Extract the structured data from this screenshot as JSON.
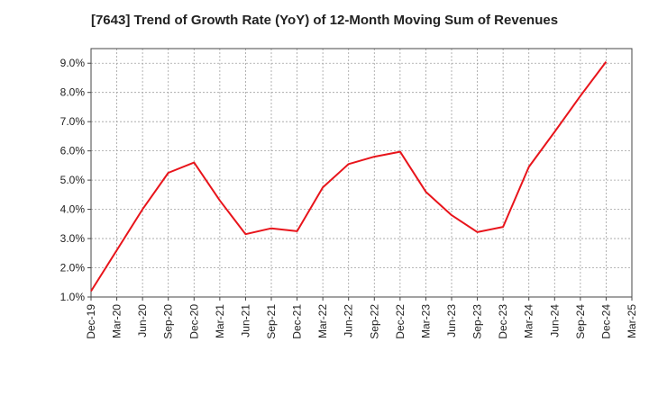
{
  "chart_data": {
    "type": "line",
    "title": "[7643]  Trend of Growth Rate (YoY) of 12-Month Moving Sum of Revenues",
    "xlabel": "",
    "ylabel": "",
    "categories": [
      "Dec-19",
      "Mar-20",
      "Jun-20",
      "Sep-20",
      "Dec-20",
      "Mar-21",
      "Jun-21",
      "Sep-21",
      "Dec-21",
      "Mar-22",
      "Jun-22",
      "Sep-22",
      "Dec-22",
      "Mar-23",
      "Jun-23",
      "Sep-23",
      "Dec-23",
      "Mar-24",
      "Jun-24",
      "Sep-24",
      "Dec-24",
      "Mar-25"
    ],
    "series": [
      {
        "values": [
          1.2,
          2.6,
          4.0,
          5.25,
          5.6,
          4.3,
          3.15,
          3.35,
          3.25,
          4.75,
          5.55,
          5.8,
          5.97,
          4.6,
          3.8,
          3.22,
          3.4,
          5.45,
          6.65,
          7.88,
          9.05,
          null
        ]
      }
    ],
    "ylim": [
      1.0,
      9.5
    ],
    "yticks": [
      1.0,
      2.0,
      3.0,
      4.0,
      5.0,
      6.0,
      7.0,
      8.0,
      9.0
    ],
    "ytick_labels": [
      "1.0%",
      "2.0%",
      "3.0%",
      "4.0%",
      "5.0%",
      "6.0%",
      "7.0%",
      "8.0%",
      "9.0%"
    ],
    "grid": true,
    "line_color": "#e8141b",
    "grid_color": "#a0a0a0",
    "legend": "none"
  }
}
